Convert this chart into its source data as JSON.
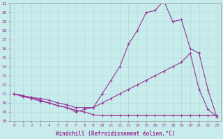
{
  "xlabel": "Windchill (Refroidissement éolien,°C)",
  "ylabel": "",
  "background_color": "#c8ecec",
  "grid_color": "#b0d8d8",
  "line_color": "#993399",
  "xlim": [
    -0.5,
    23.5
  ],
  "ylim": [
    18,
    31
  ],
  "yticks": [
    18,
    19,
    20,
    21,
    22,
    23,
    24,
    25,
    26,
    27,
    28,
    29,
    30,
    31
  ],
  "xticks": [
    0,
    1,
    2,
    3,
    4,
    5,
    6,
    7,
    8,
    9,
    10,
    11,
    12,
    13,
    14,
    15,
    16,
    17,
    18,
    19,
    20,
    21,
    22,
    23
  ],
  "line1_x": [
    0,
    1,
    2,
    3,
    4,
    5,
    6,
    7,
    8,
    9,
    10,
    11,
    12,
    13,
    14,
    15,
    16,
    17,
    18,
    19,
    20,
    21,
    22,
    23
  ],
  "line1_y": [
    21.0,
    20.8,
    20.6,
    20.3,
    20.0,
    19.7,
    19.5,
    19.2,
    19.0,
    18.7,
    18.6,
    18.6,
    18.6,
    18.6,
    18.6,
    18.6,
    18.6,
    18.6,
    18.6,
    18.6,
    18.6,
    18.6,
    18.6,
    18.6
  ],
  "line2_x": [
    0,
    1,
    2,
    3,
    4,
    5,
    6,
    7,
    8,
    9,
    10,
    11,
    12,
    13,
    14,
    15,
    16,
    17,
    18,
    19,
    20,
    21,
    22,
    23
  ],
  "line2_y": [
    21.0,
    20.8,
    20.6,
    20.5,
    20.3,
    20.0,
    19.8,
    19.5,
    19.5,
    19.5,
    20.0,
    20.5,
    21.0,
    21.5,
    22.0,
    22.5,
    23.0,
    23.5,
    24.0,
    24.5,
    25.5,
    21.5,
    19.3,
    18.5
  ],
  "line3_x": [
    0,
    1,
    2,
    3,
    4,
    5,
    6,
    7,
    8,
    9,
    10,
    11,
    12,
    13,
    14,
    15,
    16,
    17,
    18,
    19,
    20,
    21,
    22,
    23
  ],
  "line3_y": [
    21.0,
    20.7,
    20.5,
    20.2,
    20.0,
    19.7,
    19.5,
    19.0,
    19.3,
    19.5,
    21.0,
    22.5,
    24.0,
    26.5,
    28.0,
    30.0,
    30.2,
    31.3,
    29.0,
    29.2,
    26.0,
    25.5,
    21.5,
    18.5
  ]
}
